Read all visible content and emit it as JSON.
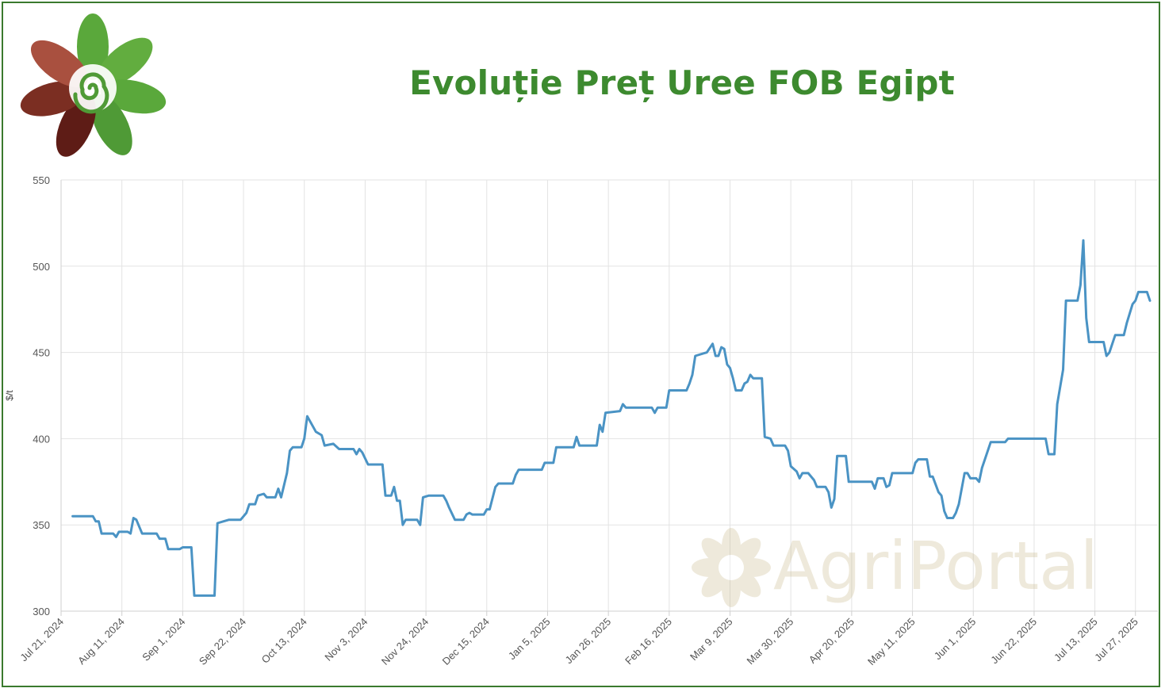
{
  "title": "Evoluție Preț Uree FOB Egipt",
  "watermark": {
    "text": "AgriPortal"
  },
  "logo": {
    "name": "agriportal-flower-logo"
  },
  "colors": {
    "line": "#4a93c4",
    "title": "#3d8a2f",
    "grid": "#e3e3e3",
    "frame": "#3a7a2e"
  },
  "chart_data": {
    "type": "line",
    "title": "",
    "xlabel": "",
    "ylabel": "$/t",
    "ylim": [
      300,
      550
    ],
    "yticks": [
      300,
      350,
      400,
      450,
      500,
      550
    ],
    "xrange": [
      "2024-07-21",
      "2025-08-01"
    ],
    "xtick_dates": [
      "2024-07-21",
      "2024-08-11",
      "2024-09-01",
      "2024-09-22",
      "2024-10-13",
      "2024-11-03",
      "2024-11-24",
      "2024-12-15",
      "2025-01-05",
      "2025-01-26",
      "2025-02-16",
      "2025-03-09",
      "2025-03-30",
      "2025-04-20",
      "2025-05-11",
      "2025-06-01",
      "2025-06-22",
      "2025-07-13",
      "2025-07-27"
    ],
    "xtick_labels": [
      "Jul 21, 2024",
      "Aug 11, 2024",
      "Sep 1, 2024",
      "Sep 22, 2024",
      "Oct 13, 2024",
      "Nov 3, 2024",
      "Nov 24, 2024",
      "Dec 15, 2024",
      "Jan 5, 2025",
      "Jan 26, 2025",
      "Feb 16, 2025",
      "Mar 9, 2025",
      "Mar 30, 2025",
      "Apr 20, 2025",
      "May 11, 2025",
      "Jun 1, 2025",
      "Jun 22, 2025",
      "Jul 13, 2025",
      "Jul 27, 2025"
    ],
    "grid": true,
    "series": [
      {
        "name": "",
        "points": [
          [
            "2024-07-25",
            355
          ],
          [
            "2024-08-01",
            355
          ],
          [
            "2024-08-02",
            352
          ],
          [
            "2024-08-03",
            352
          ],
          [
            "2024-08-04",
            345
          ],
          [
            "2024-08-08",
            345
          ],
          [
            "2024-08-09",
            343
          ],
          [
            "2024-08-10",
            346
          ],
          [
            "2024-08-13",
            346
          ],
          [
            "2024-08-14",
            345
          ],
          [
            "2024-08-15",
            354
          ],
          [
            "2024-08-16",
            353
          ],
          [
            "2024-08-18",
            345
          ],
          [
            "2024-08-23",
            345
          ],
          [
            "2024-08-24",
            342
          ],
          [
            "2024-08-26",
            342
          ],
          [
            "2024-08-27",
            336
          ],
          [
            "2024-08-31",
            336
          ],
          [
            "2024-09-01",
            337
          ],
          [
            "2024-09-04",
            337
          ],
          [
            "2024-09-05",
            309
          ],
          [
            "2024-09-12",
            309
          ],
          [
            "2024-09-13",
            351
          ],
          [
            "2024-09-15",
            352
          ],
          [
            "2024-09-17",
            353
          ],
          [
            "2024-09-21",
            353
          ],
          [
            "2024-09-22",
            355
          ],
          [
            "2024-09-23",
            357
          ],
          [
            "2024-09-24",
            362
          ],
          [
            "2024-09-26",
            362
          ],
          [
            "2024-09-27",
            367
          ],
          [
            "2024-09-29",
            368
          ],
          [
            "2024-09-30",
            366
          ],
          [
            "2024-10-03",
            366
          ],
          [
            "2024-10-04",
            371
          ],
          [
            "2024-10-05",
            366
          ],
          [
            "2024-10-07",
            380
          ],
          [
            "2024-10-08",
            393
          ],
          [
            "2024-10-09",
            395
          ],
          [
            "2024-10-12",
            395
          ],
          [
            "2024-10-13",
            400
          ],
          [
            "2024-10-14",
            413
          ],
          [
            "2024-10-16",
            407
          ],
          [
            "2024-10-17",
            404
          ],
          [
            "2024-10-19",
            402
          ],
          [
            "2024-10-20",
            396
          ],
          [
            "2024-10-23",
            397
          ],
          [
            "2024-10-25",
            394
          ],
          [
            "2024-10-30",
            394
          ],
          [
            "2024-10-31",
            391
          ],
          [
            "2024-11-01",
            394
          ],
          [
            "2024-11-02",
            392
          ],
          [
            "2024-11-04",
            385
          ],
          [
            "2024-11-09",
            385
          ],
          [
            "2024-11-10",
            367
          ],
          [
            "2024-11-12",
            367
          ],
          [
            "2024-11-13",
            372
          ],
          [
            "2024-11-14",
            364
          ],
          [
            "2024-11-15",
            364
          ],
          [
            "2024-11-16",
            350
          ],
          [
            "2024-11-17",
            353
          ],
          [
            "2024-11-21",
            353
          ],
          [
            "2024-11-22",
            350
          ],
          [
            "2024-11-23",
            366
          ],
          [
            "2024-11-25",
            367
          ],
          [
            "2024-11-30",
            367
          ],
          [
            "2024-12-01",
            364
          ],
          [
            "2024-12-02",
            360
          ],
          [
            "2024-12-04",
            353
          ],
          [
            "2024-12-07",
            353
          ],
          [
            "2024-12-08",
            356
          ],
          [
            "2024-12-09",
            357
          ],
          [
            "2024-12-10",
            356
          ],
          [
            "2024-12-14",
            356
          ],
          [
            "2024-12-15",
            359
          ],
          [
            "2024-12-16",
            359
          ],
          [
            "2024-12-18",
            372
          ],
          [
            "2024-12-19",
            374
          ],
          [
            "2024-12-24",
            374
          ],
          [
            "2024-12-25",
            379
          ],
          [
            "2024-12-26",
            382
          ],
          [
            "2025-01-03",
            382
          ],
          [
            "2025-01-04",
            386
          ],
          [
            "2025-01-07",
            386
          ],
          [
            "2025-01-08",
            395
          ],
          [
            "2025-01-14",
            395
          ],
          [
            "2025-01-15",
            401
          ],
          [
            "2025-01-16",
            396
          ],
          [
            "2025-01-22",
            396
          ],
          [
            "2025-01-23",
            408
          ],
          [
            "2025-01-24",
            404
          ],
          [
            "2025-01-25",
            415
          ],
          [
            "2025-01-30",
            416
          ],
          [
            "2025-01-31",
            420
          ],
          [
            "2025-02-01",
            418
          ],
          [
            "2025-02-10",
            418
          ],
          [
            "2025-02-11",
            415
          ],
          [
            "2025-02-12",
            418
          ],
          [
            "2025-02-15",
            418
          ],
          [
            "2025-02-16",
            428
          ],
          [
            "2025-02-22",
            428
          ],
          [
            "2025-02-23",
            432
          ],
          [
            "2025-02-24",
            437
          ],
          [
            "2025-02-25",
            448
          ],
          [
            "2025-03-01",
            450
          ],
          [
            "2025-03-03",
            455
          ],
          [
            "2025-03-04",
            448
          ],
          [
            "2025-03-05",
            448
          ],
          [
            "2025-03-06",
            453
          ],
          [
            "2025-03-07",
            452
          ],
          [
            "2025-03-08",
            443
          ],
          [
            "2025-03-09",
            441
          ],
          [
            "2025-03-10",
            435
          ],
          [
            "2025-03-11",
            428
          ],
          [
            "2025-03-13",
            428
          ],
          [
            "2025-03-14",
            432
          ],
          [
            "2025-03-15",
            433
          ],
          [
            "2025-03-16",
            437
          ],
          [
            "2025-03-17",
            435
          ],
          [
            "2025-03-20",
            435
          ],
          [
            "2025-03-21",
            401
          ],
          [
            "2025-03-23",
            400
          ],
          [
            "2025-03-24",
            396
          ],
          [
            "2025-03-28",
            396
          ],
          [
            "2025-03-29",
            393
          ],
          [
            "2025-03-30",
            384
          ],
          [
            "2025-04-01",
            381
          ],
          [
            "2025-04-02",
            377
          ],
          [
            "2025-04-03",
            380
          ],
          [
            "2025-04-05",
            380
          ],
          [
            "2025-04-07",
            376
          ],
          [
            "2025-04-08",
            372
          ],
          [
            "2025-04-11",
            372
          ],
          [
            "2025-04-12",
            369
          ],
          [
            "2025-04-13",
            360
          ],
          [
            "2025-04-14",
            365
          ],
          [
            "2025-04-15",
            390
          ],
          [
            "2025-04-18",
            390
          ],
          [
            "2025-04-19",
            375
          ],
          [
            "2025-04-27",
            375
          ],
          [
            "2025-04-28",
            371
          ],
          [
            "2025-04-29",
            377
          ],
          [
            "2025-05-01",
            377
          ],
          [
            "2025-05-02",
            372
          ],
          [
            "2025-05-03",
            373
          ],
          [
            "2025-05-04",
            380
          ],
          [
            "2025-05-10",
            380
          ],
          [
            "2025-05-11",
            380
          ],
          [
            "2025-05-12",
            386
          ],
          [
            "2025-05-13",
            388
          ],
          [
            "2025-05-16",
            388
          ],
          [
            "2025-05-17",
            378
          ],
          [
            "2025-05-18",
            378
          ],
          [
            "2025-05-20",
            369
          ],
          [
            "2025-05-21",
            367
          ],
          [
            "2025-05-22",
            358
          ],
          [
            "2025-05-23",
            354
          ],
          [
            "2025-05-25",
            354
          ],
          [
            "2025-05-26",
            357
          ],
          [
            "2025-05-27",
            362
          ],
          [
            "2025-05-29",
            380
          ],
          [
            "2025-05-30",
            380
          ],
          [
            "2025-05-31",
            377
          ],
          [
            "2025-06-02",
            377
          ],
          [
            "2025-06-03",
            375
          ],
          [
            "2025-06-04",
            383
          ],
          [
            "2025-06-05",
            388
          ],
          [
            "2025-06-07",
            398
          ],
          [
            "2025-06-12",
            398
          ],
          [
            "2025-06-13",
            400
          ],
          [
            "2025-06-26",
            400
          ],
          [
            "2025-06-27",
            391
          ],
          [
            "2025-06-29",
            391
          ],
          [
            "2025-06-30",
            420
          ],
          [
            "2025-07-02",
            440
          ],
          [
            "2025-07-03",
            480
          ],
          [
            "2025-07-07",
            480
          ],
          [
            "2025-07-08",
            489
          ],
          [
            "2025-07-09",
            515
          ],
          [
            "2025-07-10",
            470
          ],
          [
            "2025-07-11",
            456
          ],
          [
            "2025-07-16",
            456
          ],
          [
            "2025-07-17",
            448
          ],
          [
            "2025-07-18",
            450
          ],
          [
            "2025-07-20",
            460
          ],
          [
            "2025-07-23",
            460
          ],
          [
            "2025-07-24",
            467
          ],
          [
            "2025-07-26",
            478
          ],
          [
            "2025-07-27",
            480
          ],
          [
            "2025-07-28",
            485
          ],
          [
            "2025-07-31",
            485
          ],
          [
            "2025-08-01",
            480
          ]
        ]
      }
    ]
  }
}
